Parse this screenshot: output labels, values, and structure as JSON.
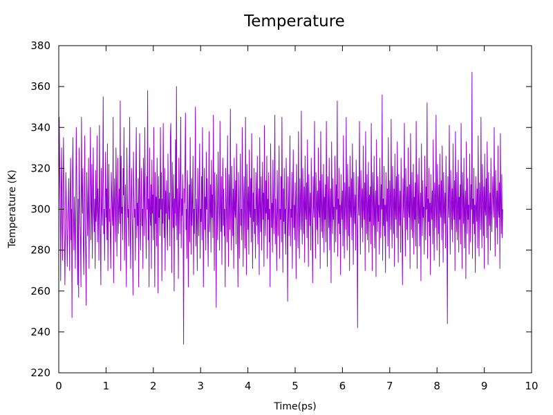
{
  "chart_data": {
    "type": "line",
    "title": "Temperature",
    "xlabel": "Time(ps)",
    "ylabel": "Temperature (K)",
    "xlim": [
      0,
      10
    ],
    "ylim": [
      220,
      380
    ],
    "xticks": [
      0,
      1,
      2,
      3,
      4,
      5,
      6,
      7,
      8,
      9,
      10
    ],
    "yticks": [
      220,
      240,
      260,
      280,
      300,
      320,
      340,
      360,
      380
    ],
    "grid": false,
    "line_color": "#9400d3",
    "series": [
      {
        "x_start": 0,
        "x_step": 0.01,
        "values": [
          300,
          345,
          320,
          298,
          265,
          310,
          330,
          290,
          275,
          312,
          335,
          300,
          285,
          263,
          290,
          318,
          306,
          294,
          272,
          288,
          300,
          315,
          296,
          270,
          309,
          325,
          285,
          300,
          247,
          318,
          335,
          298,
          280,
          306,
          292,
          271,
          300,
          340,
          318,
          289,
          263,
          305,
          257,
          330,
          311,
          295,
          284,
          262,
          345,
          310,
          298,
          320,
          282,
          268,
          301,
          336,
          292,
          276,
          253,
          318,
          307,
          287,
          300,
          325,
          271,
          296,
          312,
          340,
          285,
          300,
          322,
          276,
          304,
          330,
          298,
          289,
          305,
          271,
          319,
          294,
          300,
          336,
          284,
          310,
          298,
          275,
          341,
          303,
          287,
          263,
          320,
          300,
          292,
          312,
          355,
          288,
          300,
          275,
          304,
          328,
          296,
          310,
          285,
          332,
          270,
          301,
          322,
          294,
          300,
          286,
          271,
          318,
          308,
          298,
          292,
          345,
          264,
          300,
          315,
          299,
          284,
          330,
          312,
          277,
          303,
          325,
          288,
          300,
          310,
          293,
          353,
          270,
          326,
          298,
          301,
          285,
          320,
          307,
          340,
          275,
          300,
          312,
          288,
          262,
          330,
          306,
          296,
          300,
          282,
          316,
          345,
          292,
          271,
          305,
          320,
          299,
          287,
          258,
          328,
          310,
          296,
          300,
          275,
          318,
          340,
          286,
          303,
          292,
          315,
          262,
          306,
          337,
          298,
          280,
          305,
          320,
          292,
          300,
          271,
          325,
          310,
          287,
          340,
          302,
          294,
          276,
          316,
          300,
          358,
          285,
          305,
          262,
          330,
          300,
          292,
          312,
          271,
          324,
          298,
          307,
          285,
          340,
          300,
          262,
          318,
          293,
          306,
          282,
          325,
          301,
          259,
          316,
          296,
          305,
          287,
          340,
          300,
          318,
          265,
          305,
          293,
          342,
          300,
          286,
          320,
          270,
          309,
          298,
          314,
          290,
          280,
          327,
          300,
          295,
          308,
          282,
          335,
          342,
          300,
          269,
          323,
          303,
          291,
          317,
          260,
          305,
          298,
          334,
          292,
          360,
          285,
          310,
          300,
          266,
          325,
          304,
          288,
          318,
          345,
          281,
          305,
          297,
          317,
          292,
          234,
          310,
          303,
          322,
          347,
          290,
          300,
          276,
          319,
          307,
          262,
          295,
          312,
          284,
          335,
          300,
          278,
          315,
          292,
          305,
          326,
          268,
          300,
          288,
          312,
          350,
          282,
          305,
          295,
          270,
          320,
          301,
          287,
          309,
          332,
          276,
          300,
          294,
          316,
          285,
          340,
          305,
          262,
          298,
          320,
          290,
          306,
          280,
          328,
          300,
          315,
          292,
          272,
          305,
          338,
          289,
          300,
          312,
          279,
          324,
          296,
          307,
          286,
          346,
          300,
          270,
          318,
          304,
          293,
          252,
          317,
          300,
          285,
          328,
          309,
          296,
          280,
          343,
          301,
          289,
          316,
          273,
          303,
          325,
          292,
          310,
          287,
          300,
          262,
          320,
          306,
          295,
          284,
          336,
          300,
          272,
          317,
          305,
          290,
          349,
          298,
          280,
          321,
          303,
          287,
          310,
          271,
          325,
          300,
          296,
          314,
          283,
          332,
          305,
          289,
          262,
          318,
          300,
          276,
          306,
          327,
          292,
          300,
          285,
          340,
          309,
          272,
          303,
          316,
          294,
          281,
          345,
          300,
          268,
          322,
          305,
          290,
          311,
          278,
          329,
          300,
          296,
          315,
          284,
          337,
          302,
          271,
          308,
          294,
          320,
          288,
          300,
          276,
          318,
          305,
          292,
          326,
          283,
          300,
          310,
          268,
          335,
          302,
          289,
          316,
          280,
          300,
          323,
          295,
          308,
          272,
          341,
          301,
          287,
          314,
          298,
          326,
          276,
          305,
          295,
          318,
          284,
          300,
          262,
          332,
          309,
          291,
          303,
          279,
          324,
          300,
          288,
          312,
          346,
          283,
          305,
          293,
          270,
          319,
          301,
          287,
          308,
          331,
          276,
          300,
          295,
          316,
          284,
          345,
          302,
          269,
          310,
          294,
          320,
          288,
          300,
          278,
          325,
          306,
          292,
          255,
          316,
          301,
          287,
          310,
          336,
          282,
          300,
          296,
          318,
          271,
          305,
          329,
          291,
          302,
          285,
          313,
          300,
          266,
          322,
          307,
          294,
          281,
          338,
          300,
          276,
          315,
          303,
          290,
          348,
          297,
          283,
          320,
          305,
          288,
          311,
          274,
          326,
          300,
          295,
          313,
          286,
          334,
          304,
          272,
          317,
          300,
          292,
          308,
          280,
          325,
          301,
          289,
          264,
          316,
          302,
          296,
          343,
          300,
          276,
          318,
          305,
          290,
          309,
          283,
          330,
          300,
          296,
          314,
          271,
          338,
          303,
          289,
          317,
          286,
          300,
          322,
          279,
          306,
          295,
          312,
          284,
          343,
          300,
          272,
          316,
          304,
          291,
          325,
          280,
          300,
          310,
          264,
          333,
          302,
          288,
          315,
          295,
          301,
          279,
          326,
          307,
          284,
          312,
          300,
          353,
          277,
          305,
          293,
          320,
          288,
          302,
          268,
          317,
          301,
          295,
          309,
          282,
          336,
          300,
          276,
          313,
          304,
          290,
          345,
          298,
          280,
          322,
          306,
          287,
          311,
          270,
          326,
          300,
          296,
          315,
          285,
          332,
          305,
          273,
          318,
          301,
          293,
          307,
          280,
          324,
          300,
          290,
          242,
          316,
          303,
          297,
          343,
          301,
          278,
          319,
          306,
          291,
          310,
          284,
          331,
          300,
          295,
          313,
          270,
          338,
          304,
          288,
          317,
          285,
          301,
          323,
          279,
          307,
          294,
          311,
          283,
          342,
          300,
          270,
          318,
          305,
          292,
          326,
          281,
          300,
          309,
          267,
          334,
          303,
          289,
          316,
          294,
          302,
          278,
          325,
          306,
          286,
          312,
          300,
          356,
          275,
          305,
          292,
          321,
          287,
          302,
          269,
          318,
          300,
          294,
          310,
          282,
          335,
          301,
          276,
          314,
          305,
          290,
          344,
          297,
          281,
          321,
          306,
          288,
          310,
          272,
          327,
          300,
          295,
          316,
          286,
          333,
          304,
          274,
          317,
          301,
          292,
          309,
          279,
          325,
          300,
          289,
          263,
          315,
          303,
          296,
          342,
          301,
          277,
          320,
          305,
          290,
          311,
          285,
          330,
          300,
          296,
          312,
          271,
          337,
          304,
          290,
          318,
          286,
          300,
          322,
          278,
          306,
          295,
          313,
          282,
          343,
          301,
          271,
          317,
          304,
          293,
          325,
          282,
          300,
          308,
          265,
          332,
          303,
          287,
          314,
          296,
          301,
          278,
          326,
          307,
          285,
          311,
          300,
          352,
          276,
          305,
          294,
          320,
          287,
          303,
          268,
          317,
          300,
          295,
          309,
          283,
          334,
          301,
          275,
          313,
          305,
          291,
          346,
          298,
          280,
          322,
          306,
          288,
          312,
          272,
          327,
          300,
          296,
          314,
          285,
          331,
          304,
          274,
          318,
          302,
          293,
          308,
          281,
          326,
          300,
          290,
          244,
          316,
          303,
          296,
          341,
          301,
          278,
          319,
          306,
          290,
          310,
          284,
          332,
          300,
          295,
          314,
          270,
          338,
          304,
          289,
          318,
          285,
          301,
          324,
          279,
          306,
          295,
          312,
          283,
          342,
          300,
          271,
          318,
          305,
          293,
          325,
          281,
          300,
          309,
          266,
          333,
          302,
          288,
          315,
          295,
          302,
          278,
          327,
          306,
          284,
          312,
          300,
          367,
          276,
          305,
          293,
          320,
          288,
          302,
          269,
          316,
          301,
          294,
          310,
          281,
          336,
          300,
          277,
          313,
          304,
          290,
          345,
          298,
          281,
          322,
          307,
          287,
          311,
          271,
          327,
          300,
          297,
          315,
          286,
          333,
          304,
          273,
          318,
          301,
          292,
          308,
          280,
          325,
          300,
          289,
          305,
          316,
          302,
          296,
          340,
          301,
          277,
          319,
          306,
          291,
          309,
          283,
          331,
          300,
          296,
          313,
          271,
          337,
          303,
          288,
          317,
          286,
          300
        ]
      }
    ]
  }
}
